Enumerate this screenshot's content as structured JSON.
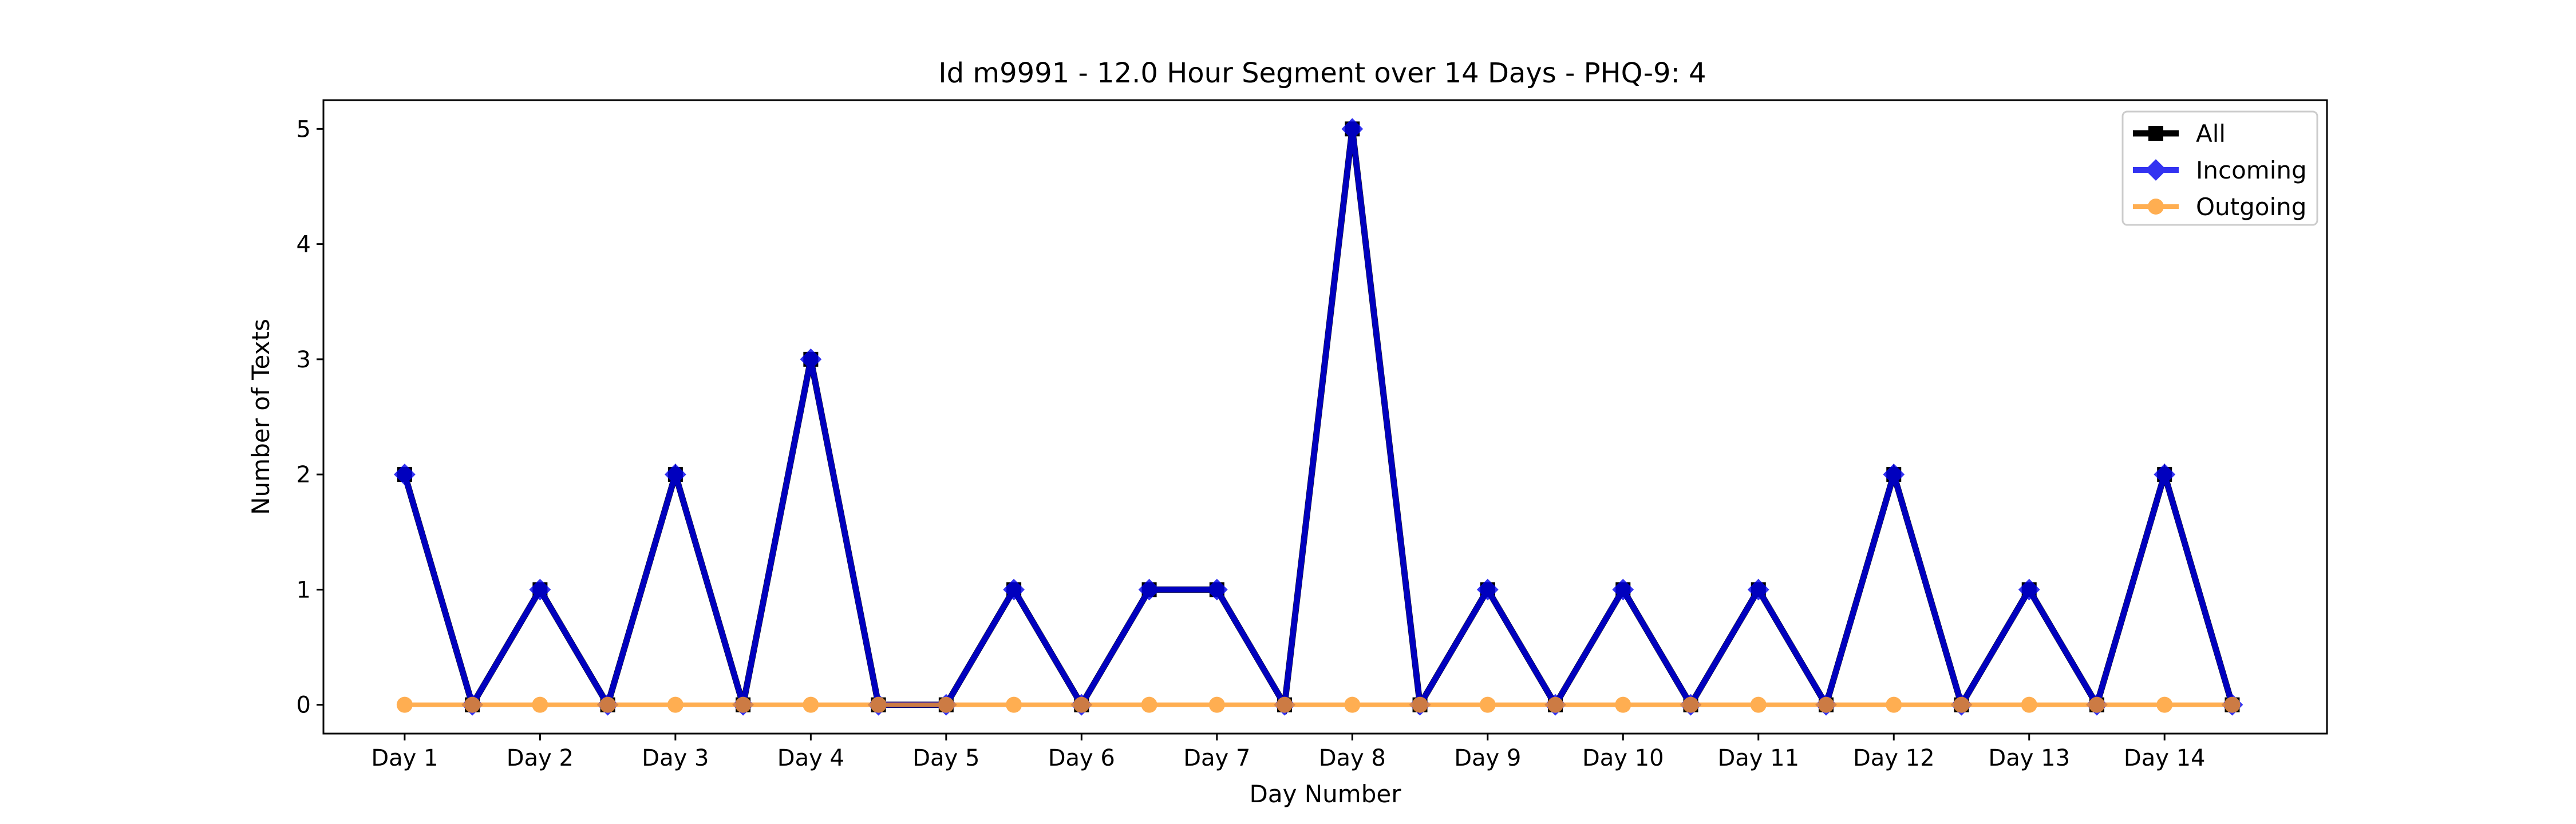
{
  "chart_data": {
    "type": "line",
    "title": "Id m9991 - 12.0 Hour Segment over 14 Days - PHQ-9: 4",
    "xlabel": "Day Number",
    "ylabel": "Number of Texts",
    "categories": [
      "Day 1",
      "Day 2",
      "Day 3",
      "Day 4",
      "Day 5",
      "Day 6",
      "Day 7",
      "Day 8",
      "Day 9",
      "Day 10",
      "Day 11",
      "Day 12",
      "Day 13",
      "Day 14"
    ],
    "x": [
      1,
      1.5,
      2,
      2.5,
      3,
      3.5,
      4,
      4.5,
      5,
      5.5,
      6,
      6.5,
      7,
      7.5,
      8,
      8.5,
      9,
      9.5,
      10,
      10.5,
      11,
      11.5,
      12,
      12.5,
      13,
      13.5,
      14,
      14.5
    ],
    "xlim": [
      0.4,
      15.2
    ],
    "ylim": [
      -0.25,
      5.25
    ],
    "yticks": [
      0,
      1,
      2,
      3,
      4,
      5
    ],
    "grid": false,
    "legend_position": "top-right",
    "series": [
      {
        "name": "All",
        "color": "#000000",
        "marker": "square",
        "values": [
          2,
          0,
          1,
          0,
          2,
          0,
          3,
          0,
          0,
          1,
          0,
          1,
          1,
          0,
          5,
          0,
          1,
          0,
          1,
          0,
          1,
          0,
          2,
          0,
          1,
          0,
          2,
          0
        ]
      },
      {
        "name": "Incoming",
        "color": "#0000ee",
        "marker": "diamond",
        "values": [
          2,
          0,
          1,
          0,
          2,
          0,
          3,
          0,
          0,
          1,
          0,
          1,
          1,
          0,
          5,
          0,
          1,
          0,
          1,
          0,
          1,
          0,
          2,
          0,
          1,
          0,
          2,
          0
        ]
      },
      {
        "name": "Outgoing",
        "color": "#ff9a26",
        "marker": "circle",
        "values": [
          0,
          0,
          0,
          0,
          0,
          0,
          0,
          0,
          0,
          0,
          0,
          0,
          0,
          0,
          0,
          0,
          0,
          0,
          0,
          0,
          0,
          0,
          0,
          0,
          0,
          0,
          0,
          0
        ]
      }
    ]
  }
}
